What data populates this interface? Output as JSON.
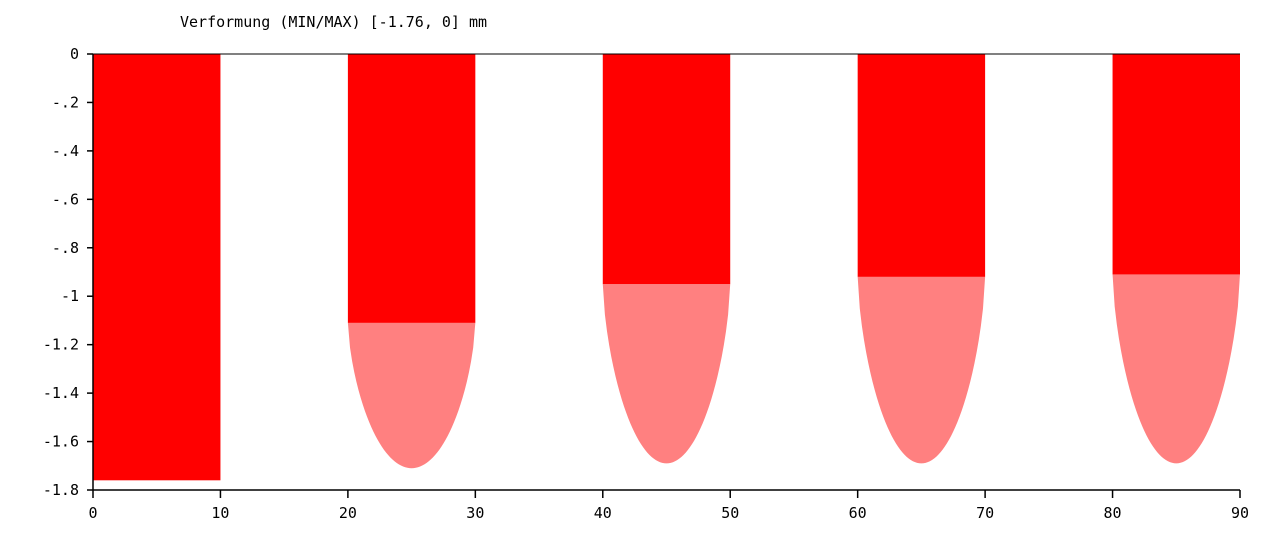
{
  "chart_data": {
    "type": "bar",
    "title": "Verformung (MIN/MAX) [-1.76, 0] mm",
    "xlabel": "",
    "ylabel": "",
    "xlim": [
      0,
      90
    ],
    "ylim": [
      -1.8,
      0
    ],
    "x_ticks": [
      {
        "value": 0,
        "label": "0"
      },
      {
        "value": 10,
        "label": "10"
      },
      {
        "value": 20,
        "label": "20"
      },
      {
        "value": 30,
        "label": "30"
      },
      {
        "value": 40,
        "label": "40"
      },
      {
        "value": 50,
        "label": "50"
      },
      {
        "value": 60,
        "label": "60"
      },
      {
        "value": 70,
        "label": "70"
      },
      {
        "value": 80,
        "label": "80"
      },
      {
        "value": 90,
        "label": "90"
      }
    ],
    "y_ticks": [
      {
        "value": 0,
        "label": "0"
      },
      {
        "value": -0.2,
        "label": "-.2"
      },
      {
        "value": -0.4,
        "label": "-.4"
      },
      {
        "value": -0.6,
        "label": "-.6"
      },
      {
        "value": -0.8,
        "label": "-.8"
      },
      {
        "value": -1.0,
        "label": "-1"
      },
      {
        "value": -1.2,
        "label": "-1.2"
      },
      {
        "value": -1.4,
        "label": "-1.4"
      },
      {
        "value": -1.6,
        "label": "-1.6"
      },
      {
        "value": -1.8,
        "label": "-1.8"
      }
    ],
    "bars": [
      {
        "x0": 0,
        "x1": 10,
        "value": -1.76,
        "peak": -1.76
      },
      {
        "x0": 20,
        "x1": 30,
        "value": -1.11,
        "peak": -1.71
      },
      {
        "x0": 40,
        "x1": 50,
        "value": -0.95,
        "peak": -1.69
      },
      {
        "x0": 60,
        "x1": 70,
        "value": -0.92,
        "peak": -1.69
      },
      {
        "x0": 80,
        "x1": 90,
        "value": -0.91,
        "peak": -1.69
      }
    ],
    "colors": {
      "bar": "#ff0000",
      "deflection": "#ff8080",
      "axis": "#000000"
    },
    "grid": false,
    "legend": "none"
  }
}
